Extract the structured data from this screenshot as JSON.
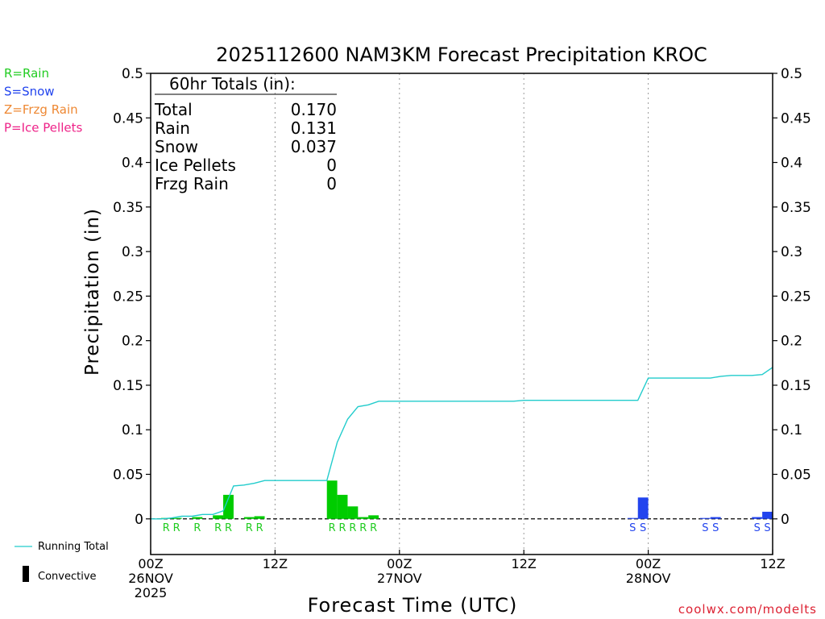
{
  "chart_data": {
    "type": "bar",
    "title": "2025112600 NAM3KM Forecast Precipitation KROC",
    "xlabel": "Forecast Time (UTC)",
    "ylabel": "Precipitation (in)",
    "ylim": [
      -0.04,
      0.5
    ],
    "xlim": [
      0,
      60
    ],
    "y_ticks": [
      "0",
      "0.05",
      "0.1",
      "0.15",
      "0.2",
      "0.25",
      "0.3",
      "0.35",
      "0.4",
      "0.45",
      "0.5"
    ],
    "y_tick_values": [
      0,
      0.05,
      0.1,
      0.15,
      0.2,
      0.25,
      0.3,
      0.35,
      0.4,
      0.45,
      0.5
    ],
    "x_ticks": [
      {
        "hour": 0,
        "label": "00Z",
        "sub": "26NOV",
        "sub2": "2025"
      },
      {
        "hour": 12,
        "label": "12Z",
        "sub": "",
        "sub2": ""
      },
      {
        "hour": 24,
        "label": "00Z",
        "sub": "27NOV",
        "sub2": ""
      },
      {
        "hour": 36,
        "label": "12Z",
        "sub": "",
        "sub2": ""
      },
      {
        "hour": 48,
        "label": "00Z",
        "sub": "28NOV",
        "sub2": ""
      },
      {
        "hour": 60,
        "label": "12Z",
        "sub": "",
        "sub2": ""
      }
    ],
    "grid_hours": [
      12,
      24,
      36,
      48
    ],
    "series": [
      {
        "name": "Rain",
        "color": "#00cc00",
        "points": [
          [
            2,
            0.001
          ],
          [
            3,
            0.001
          ],
          [
            5,
            0.002
          ],
          [
            7,
            0.004
          ],
          [
            8,
            0.027
          ],
          [
            10,
            0.002
          ],
          [
            11,
            0.003
          ],
          [
            18,
            0.043
          ],
          [
            19,
            0.027
          ],
          [
            20,
            0.014
          ],
          [
            21,
            0.002
          ],
          [
            22,
            0.004
          ]
        ]
      },
      {
        "name": "Snow",
        "color": "#2244ee",
        "points": [
          [
            47,
            0.001
          ],
          [
            48,
            0.024
          ],
          [
            54,
            0.001
          ],
          [
            55,
            0.002
          ],
          [
            59,
            0.002
          ],
          [
            60,
            0.008
          ]
        ]
      }
    ],
    "type_letters": [
      {
        "hour": 2,
        "letter": "R",
        "kind": "rain"
      },
      {
        "hour": 3,
        "letter": "R",
        "kind": "rain"
      },
      {
        "hour": 5,
        "letter": "R",
        "kind": "rain"
      },
      {
        "hour": 7,
        "letter": "R",
        "kind": "rain"
      },
      {
        "hour": 8,
        "letter": "R",
        "kind": "rain"
      },
      {
        "hour": 10,
        "letter": "R",
        "kind": "rain"
      },
      {
        "hour": 11,
        "letter": "R",
        "kind": "rain"
      },
      {
        "hour": 18,
        "letter": "R",
        "kind": "rain"
      },
      {
        "hour": 19,
        "letter": "R",
        "kind": "rain"
      },
      {
        "hour": 20,
        "letter": "R",
        "kind": "rain"
      },
      {
        "hour": 21,
        "letter": "R",
        "kind": "rain"
      },
      {
        "hour": 22,
        "letter": "R",
        "kind": "rain"
      },
      {
        "hour": 47,
        "letter": "S",
        "kind": "snow"
      },
      {
        "hour": 48,
        "letter": "S",
        "kind": "snow"
      },
      {
        "hour": 54,
        "letter": "S",
        "kind": "snow"
      },
      {
        "hour": 55,
        "letter": "S",
        "kind": "snow"
      },
      {
        "hour": 59,
        "letter": "S",
        "kind": "snow"
      },
      {
        "hour": 60,
        "letter": "S",
        "kind": "snow"
      }
    ],
    "running_total": {
      "name": "Running Total",
      "color": "#22cccc",
      "x": [
        0,
        1,
        2,
        3,
        4,
        5,
        6,
        7,
        8,
        9,
        10,
        11,
        12,
        13,
        14,
        15,
        16,
        17,
        18,
        19,
        20,
        21,
        22,
        23,
        24,
        25,
        26,
        27,
        28,
        29,
        30,
        31,
        32,
        33,
        34,
        35,
        36,
        37,
        38,
        39,
        40,
        41,
        42,
        43,
        44,
        45,
        46,
        47,
        48,
        49,
        50,
        51,
        52,
        53,
        54,
        55,
        56,
        57,
        58,
        59,
        60
      ],
      "y": [
        0,
        0,
        0.001,
        0.003,
        0.003,
        0.005,
        0.005,
        0.009,
        0.037,
        0.038,
        0.04,
        0.043,
        0.043,
        0.043,
        0.043,
        0.043,
        0.043,
        0.043,
        0.086,
        0.112,
        0.126,
        0.128,
        0.132,
        0.132,
        0.132,
        0.132,
        0.132,
        0.132,
        0.132,
        0.132,
        0.132,
        0.132,
        0.132,
        0.132,
        0.132,
        0.132,
        0.133,
        0.133,
        0.133,
        0.133,
        0.133,
        0.133,
        0.133,
        0.133,
        0.133,
        0.133,
        0.133,
        0.133,
        0.158,
        0.158,
        0.158,
        0.158,
        0.158,
        0.158,
        0.158,
        0.16,
        0.161,
        0.161,
        0.161,
        0.162,
        0.17
      ]
    },
    "totals_box": {
      "title": "60hr Totals (in):",
      "rows": [
        {
          "label": "Total",
          "value": "0.170"
        },
        {
          "label": "Rain",
          "value": "0.131"
        },
        {
          "label": "Snow",
          "value": "0.037"
        },
        {
          "label": "Ice Pellets",
          "value": "0"
        },
        {
          "label": "Frzg Rain",
          "value": "0"
        }
      ]
    },
    "type_legend": [
      {
        "text": "R=Rain",
        "color": "#22cc22"
      },
      {
        "text": "S=Snow",
        "color": "#2244ee"
      },
      {
        "text": "Z=Frzg Rain",
        "color": "#ee8833"
      },
      {
        "text": "P=Ice Pellets",
        "color": "#ee2288"
      }
    ],
    "bottom_legend": {
      "running_total": "Running Total",
      "convective": "Convective"
    },
    "credit": "coolwx.com/modelts"
  }
}
